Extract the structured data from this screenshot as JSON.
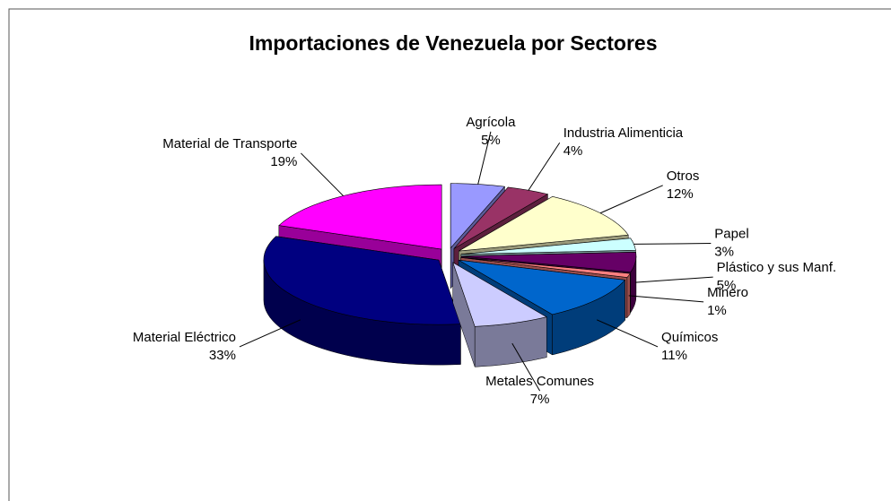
{
  "chart_data": {
    "type": "pie",
    "title": "Importaciones de Venezuela por Sectores",
    "categories": [
      "Agrícola",
      "Industria Alimenticia",
      "Otros",
      "Papel",
      "Plástico y sus Manf.",
      "Minero",
      "Químicos",
      "Metales Comunes",
      "Material Eléctrico",
      "Material de Transporte"
    ],
    "values": [
      5,
      4,
      12,
      3,
      5,
      1,
      11,
      7,
      33,
      19
    ],
    "value_labels": [
      "5%",
      "4%",
      "12%",
      "3%",
      "5%",
      "1%",
      "11%",
      "7%",
      "33%",
      "19%"
    ],
    "colors": [
      "#9999ff",
      "#993366",
      "#ffffcc",
      "#ccffff",
      "#660066",
      "#ff8080",
      "#0066cc",
      "#ccccff",
      "#000080",
      "#ff00ff"
    ]
  }
}
